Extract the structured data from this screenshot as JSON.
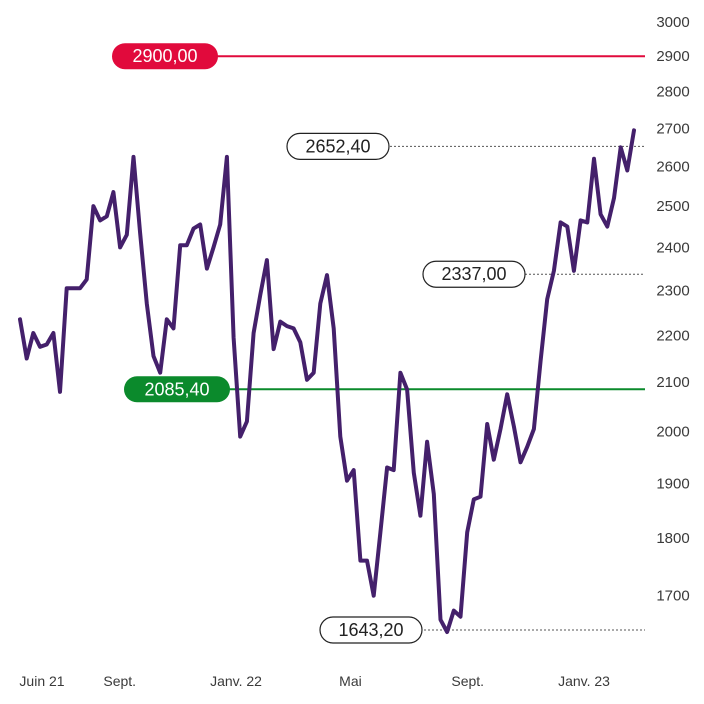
{
  "chart_data": {
    "type": "line",
    "y_ticks": [
      "3000",
      "2900",
      "2800",
      "2700",
      "2600",
      "2500",
      "2400",
      "2300",
      "2200",
      "2100",
      "2000",
      "1900",
      "1800",
      "1700"
    ],
    "y_tick_values": [
      3000,
      2900,
      2800,
      2700,
      2600,
      2500,
      2400,
      2300,
      2200,
      2100,
      2000,
      1900,
      1800,
      1700
    ],
    "x_ticks": [
      "Juin 21",
      "Sept.",
      "Janv. 22",
      "Mai",
      "Sept.",
      "Janv. 23"
    ],
    "x_tick_dates": [
      "2021-06-01",
      "2021-09-01",
      "2022-01-01",
      "2022-05-01",
      "2022-09-01",
      "2023-01-01"
    ],
    "series": [
      {
        "x": [
          "2021-06-01",
          "2021-06-08",
          "2021-06-15",
          "2021-06-22",
          "2021-06-29",
          "2021-07-06",
          "2021-07-13",
          "2021-07-20",
          "2021-07-27",
          "2021-08-03",
          "2021-08-10",
          "2021-08-17",
          "2021-08-24",
          "2021-08-31",
          "2021-09-07",
          "2021-09-14",
          "2021-09-21",
          "2021-09-28",
          "2021-10-05",
          "2021-10-12",
          "2021-10-19",
          "2021-10-26",
          "2021-11-02",
          "2021-11-09",
          "2021-11-16",
          "2021-11-23",
          "2021-11-30",
          "2021-12-07",
          "2021-12-14",
          "2021-12-21",
          "2021-12-28",
          "2022-01-04",
          "2022-01-11",
          "2022-01-18",
          "2022-01-25",
          "2022-02-01",
          "2022-02-08",
          "2022-02-15",
          "2022-02-22",
          "2022-03-01",
          "2022-03-08",
          "2022-03-15",
          "2022-03-22",
          "2022-03-29",
          "2022-04-05",
          "2022-04-12",
          "2022-04-19",
          "2022-04-26",
          "2022-05-03",
          "2022-05-10",
          "2022-05-17",
          "2022-05-24",
          "2022-05-31",
          "2022-06-07",
          "2022-06-14",
          "2022-06-21",
          "2022-06-28",
          "2022-07-05",
          "2022-07-12",
          "2022-07-19",
          "2022-07-26",
          "2022-08-02",
          "2022-08-09",
          "2022-08-16",
          "2022-08-23",
          "2022-08-30",
          "2022-09-06",
          "2022-09-13",
          "2022-09-20",
          "2022-09-27",
          "2022-10-04",
          "2022-10-11",
          "2022-10-18",
          "2022-10-25",
          "2022-11-01",
          "2022-11-08",
          "2022-11-15",
          "2022-11-22",
          "2022-11-29",
          "2022-12-06",
          "2022-12-13",
          "2022-12-20",
          "2022-12-27",
          "2023-01-03",
          "2023-01-10",
          "2023-01-17",
          "2023-01-24",
          "2023-01-31",
          "2023-02-07",
          "2023-02-14",
          "2023-02-21",
          "2023-02-28",
          "2023-03-07"
        ],
        "values": [
          2235,
          2150,
          2205,
          2175,
          2180,
          2205,
          2080,
          2305,
          2305,
          2305,
          2325,
          2500,
          2465,
          2475,
          2535,
          2400,
          2430,
          2625,
          2435,
          2270,
          2155,
          2120,
          2235,
          2215,
          2405,
          2405,
          2445,
          2455,
          2350,
          2400,
          2455,
          2625,
          2195,
          1990,
          2020,
          2205,
          2290,
          2370,
          2170,
          2230,
          2220,
          2215,
          2185,
          2105,
          2120,
          2270,
          2335,
          2215,
          1990,
          1905,
          1925,
          1760,
          1760,
          1700,
          1810,
          1930,
          1925,
          2120,
          2085,
          1920,
          1840,
          1980,
          1880,
          1660,
          1640,
          1675,
          1665,
          1810,
          1870,
          1875,
          2015,
          1945,
          2005,
          2075,
          2010,
          1940,
          1970,
          2005,
          2145,
          2280,
          2345,
          2460,
          2450,
          2345,
          2465,
          2460,
          2620,
          2480,
          2450,
          2520,
          2650,
          2590,
          2695
        ]
      }
    ],
    "annotations": {
      "resistance": {
        "value": 2900,
        "label": "2900,00",
        "color": "#e10a3c"
      },
      "support": {
        "value": 2085.4,
        "label": "2085,40",
        "color": "#0b8a2c"
      },
      "points": [
        {
          "value": 2652.4,
          "label": "2652,40"
        },
        {
          "value": 2337,
          "label": "2337,00"
        },
        {
          "value": 1643.2,
          "label": "1643,20"
        }
      ]
    },
    "line_color": "#44206b",
    "ylim": [
      1643.2,
      3000
    ],
    "y_scale": "log",
    "grid": false,
    "legend": "none"
  }
}
